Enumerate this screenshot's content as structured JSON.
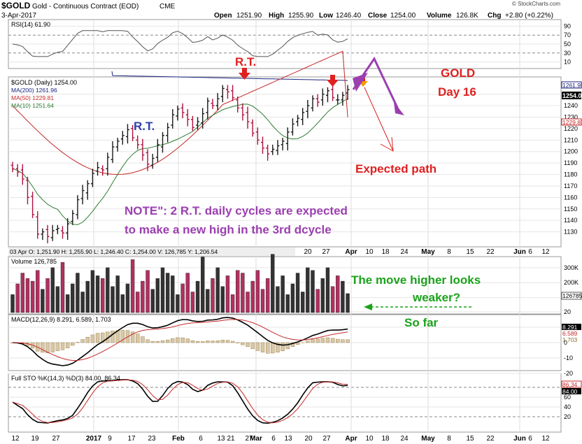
{
  "header": {
    "symbol": "$GOLD",
    "name": "Gold - Continuous Contract (EOD)",
    "exchange": "CME",
    "date": "3-Apr-2017",
    "watermark": "© StockCharts.com",
    "open_label": "Open",
    "open": "1251.90",
    "high_label": "High",
    "high": "1255.90",
    "low_label": "Low",
    "low": "1246.40",
    "close_label": "Close",
    "close": "1254.00",
    "volume_label": "Volume",
    "volume": "126.8K",
    "chg_label": "Chg",
    "chg": "+2.80 (+0.22%)"
  },
  "colors": {
    "up_bar": "#1a1a1a",
    "down_bar": "#b0103f",
    "ma200": "#1a237e",
    "ma50": "#c62828",
    "ma10": "#2e7d32",
    "volume_up": "#333333",
    "volume_down": "#b03060",
    "annotation_red": "#e02020",
    "annotation_purple": "#9b3fb0",
    "annotation_green": "#1aa31a",
    "annotation_blue": "#2f3fa8"
  },
  "panels": {
    "rsi": {
      "label": "RSI(14) 61.90",
      "value": "61.90",
      "ticks": [
        "90",
        "70",
        "50",
        "30",
        "10"
      ]
    },
    "price": {
      "legend_title": "$GOLD (Daily) 1254.00",
      "ma200_label": "MA(200) 1261.96",
      "ma50_label": "MA(50) 1229.81",
      "ma10_label": "MA(10) 1251.64",
      "ticks": [
        "1250",
        "1240",
        "1230",
        "1220",
        "1210",
        "1200",
        "1190",
        "1180",
        "1170",
        "1160",
        "1150",
        "1140",
        "1130"
      ],
      "badges": [
        "1261.96",
        "1254.00",
        "1229.81"
      ]
    },
    "ohlc_strip": "03 Apr O: 1,251.90   H: 1,255.90   L: 1,246.40   C: 1,254.00   V: 126,785   Y: 1,206.54",
    "volume": {
      "label": "Volume 126,785",
      "ticks": [
        "300K",
        "200K",
        "100K"
      ],
      "badge": "126785"
    },
    "macd": {
      "label": "MACD(12,26,9) 8.291, 6.589, 1.703",
      "ticks": [
        "20",
        "10",
        "0",
        "-10",
        "-20"
      ],
      "badges": [
        "8.291",
        "6.589",
        "1.703"
      ]
    },
    "sto": {
      "label": "Full STO %K(14,3) %D(3) 84.00, 86.34",
      "ticks": [
        "80",
        "60",
        "40",
        "20"
      ],
      "badges": [
        "86.34",
        "84.00"
      ]
    }
  },
  "x_axis": {
    "top_labels": [
      "20",
      "27",
      "Apr",
      "10",
      "18",
      "24",
      "May",
      "8",
      "15",
      "22",
      "Jun",
      "6",
      "12"
    ],
    "bottom_labels": [
      "12",
      "19",
      "27",
      "2017",
      "9",
      "17",
      "23",
      "Feb",
      "6",
      "13",
      "21",
      "27",
      "Mar",
      "6",
      "13",
      "20",
      "27",
      "Apr",
      "10",
      "18",
      "24",
      "May",
      "8",
      "15",
      "22",
      "Jun",
      "6",
      "12"
    ]
  },
  "annotations": {
    "rt_left": "R.T.",
    "rt_top": "R.T.",
    "gold": "GOLD",
    "day": "Day 16",
    "expected_path": "Expected path",
    "note_line1": "NOTE\":  2 R.T. daily cycles are expected",
    "note_line2": "to make a new high in the 3rd dcycle",
    "weaker_line1": "The move higher looks",
    "weaker_line2": "weaker?",
    "so_far": "So far"
  },
  "chart_data": {
    "type": "ohlc",
    "title": "$GOLD Gold - Continuous Contract (EOD) CME",
    "period": "daily, Jan 2017 - 3 Apr 2017",
    "close": [
      1185,
      1182,
      1176,
      1160,
      1145,
      1128,
      1130,
      1126,
      1131,
      1133,
      1129,
      1137,
      1146,
      1158,
      1166,
      1172,
      1181,
      1186,
      1184,
      1195,
      1204,
      1209,
      1214,
      1219,
      1212,
      1206,
      1197,
      1189,
      1194,
      1206,
      1214,
      1221,
      1232,
      1237,
      1234,
      1228,
      1221,
      1226,
      1233,
      1244,
      1240,
      1246,
      1255,
      1252,
      1247,
      1238,
      1232,
      1226,
      1216,
      1210,
      1203,
      1198,
      1202,
      1205,
      1209,
      1217,
      1224,
      1229,
      1234,
      1240,
      1246,
      1243,
      1250,
      1253,
      1247,
      1245,
      1249,
      1254
    ],
    "ma200": {
      "start": 1268,
      "end": 1261.96
    },
    "ma50_last": 1229.81,
    "ma10_last": 1251.64,
    "rsi_last": 61.9,
    "volume_last": 126785,
    "macd_last": [
      8.291,
      6.589,
      1.703
    ],
    "sto_last": [
      84.0,
      86.34
    ],
    "price_range": [
      1120,
      1262
    ]
  }
}
